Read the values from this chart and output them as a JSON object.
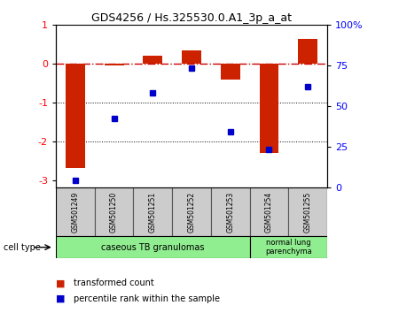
{
  "title": "GDS4256 / Hs.325530.0.A1_3p_a_at",
  "samples": [
    "GSM501249",
    "GSM501250",
    "GSM501251",
    "GSM501252",
    "GSM501253",
    "GSM501254",
    "GSM501255"
  ],
  "red_bars": [
    -2.7,
    -0.05,
    0.2,
    0.35,
    -0.4,
    -2.3,
    0.65
  ],
  "blue_dots": [
    -3.0,
    -1.4,
    -0.75,
    -0.1,
    -1.75,
    -2.2,
    -0.6
  ],
  "ylim_left": [
    -3.2,
    1.0
  ],
  "yticks_left": [
    1,
    0,
    -1,
    -2,
    -3
  ],
  "ytick_left_labels": [
    "1",
    "0",
    "-1",
    "-2",
    "-3"
  ],
  "bar_color": "#CC2200",
  "dot_color": "#0000CC",
  "hline_color": "#CC0000",
  "background_color": "#ffffff",
  "legend_red": "transformed count",
  "legend_blue": "percentile rank within the sample",
  "cell_type_label": "cell type",
  "group1_label": "caseous TB granulomas",
  "group1_n": 5,
  "group2_label": "normal lung\nparenchyma",
  "group2_n": 2,
  "group_color": "#90EE90"
}
